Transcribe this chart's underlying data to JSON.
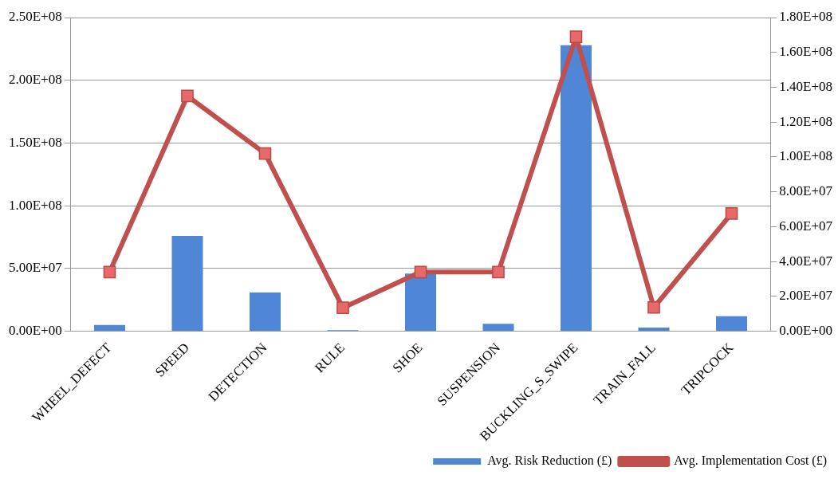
{
  "chart_data": {
    "type": "bar",
    "categories": [
      "WHEEL_DEFECT",
      "SPEED",
      "DETECTION",
      "RULE",
      "SHOE",
      "SUSPENSION",
      "BUCKLING_S_SWIPE",
      "TRAIN_FALL",
      "TRIPCOCK"
    ],
    "series": [
      {
        "name": "Avg. Risk Reduction (£)",
        "color": "#4f86d6",
        "values": [
          5000000,
          76000000,
          31000000,
          1000000,
          46000000,
          6000000,
          228000000,
          3000000,
          12000000
        ]
      },
      {
        "name": "Avg. Implementation Cost (£)",
        "type": "line",
        "axis": "y2",
        "color": "#c0504d",
        "marker": "square",
        "values": [
          34000000,
          135000000,
          102000000,
          13500000,
          34000000,
          34000000,
          169000000,
          13700000,
          67600000
        ]
      }
    ],
    "ylim": [
      0,
      250000000
    ],
    "yticks": [
      {
        "value": 0,
        "label": "0.00E+00"
      },
      {
        "value": 50000000,
        "label": "5.00E+07"
      },
      {
        "value": 100000000,
        "label": "1.00E+08"
      },
      {
        "value": 150000000,
        "label": "1.50E+08"
      },
      {
        "value": 200000000,
        "label": "2.00E+08"
      },
      {
        "value": 250000000,
        "label": "2.50E+08"
      }
    ],
    "y2lim": [
      0,
      180000000
    ],
    "y2ticks": [
      {
        "value": 0,
        "label": "0.00E+00"
      },
      {
        "value": 20000000,
        "label": "2.00E+07"
      },
      {
        "value": 40000000,
        "label": "4.00E+07"
      },
      {
        "value": 60000000,
        "label": "6.00E+07"
      },
      {
        "value": 80000000,
        "label": "8.00E+07"
      },
      {
        "value": 100000000,
        "label": "1.00E+08"
      },
      {
        "value": 120000000,
        "label": "1.20E+08"
      },
      {
        "value": 140000000,
        "label": "1.40E+08"
      },
      {
        "value": 160000000,
        "label": "1.60E+08"
      },
      {
        "value": 180000000,
        "label": "1.80E+08"
      }
    ],
    "grid": "y",
    "legend": "bottom right"
  }
}
